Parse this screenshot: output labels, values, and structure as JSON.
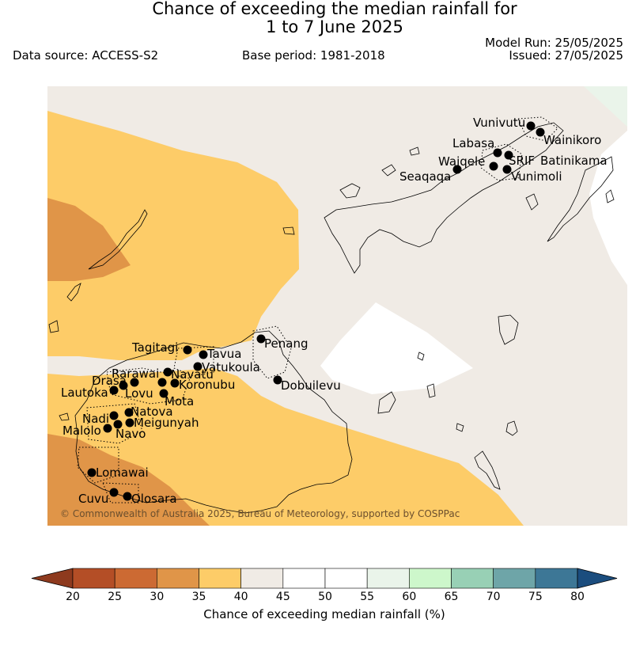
{
  "header": {
    "title_line1": "Chance of exceeding the median rainfall for",
    "title_line2": "1 to 7 June 2025",
    "data_source": "Data source: ACCESS-S2",
    "base_period": "Base period: 1981-2018",
    "model_run": "Model Run: 25/05/2025",
    "issued": "Issued: 27/05/2025"
  },
  "map": {
    "copyright": "© Commonwealth of Australia 2025, Bureau of Meteorology, supported by COSPPac",
    "stations": [
      "Vunivutu",
      "Wainikoro",
      "Labasa",
      "Waiqele",
      "SRIF",
      "Batinikama",
      "Seaqaqa",
      "Vunimoli",
      "Penang",
      "Dobuilevu",
      "Tagitagi",
      "Tavua",
      "Vatukoula",
      "Rarawai",
      "Navatu",
      "Drasa",
      "Koronubu",
      "Lautoka",
      "Lovu",
      "Mota",
      "Nadi",
      "Natova",
      "Meigunyah",
      "Malolo",
      "Navo",
      "Lomawai",
      "Cuvu",
      "Olosara"
    ]
  },
  "colorbar": {
    "label": "Chance of exceeding median rainfall (%)",
    "ticks": [
      "20",
      "25",
      "30",
      "35",
      "40",
      "45",
      "50",
      "55",
      "60",
      "65",
      "70",
      "75",
      "80"
    ],
    "colors": [
      "#8e3a1e",
      "#b44e26",
      "#cc6a33",
      "#e09548",
      "#fdcc68",
      "#f0ebe5",
      "#ffffff",
      "#ffffff",
      "#eaf4ea",
      "#cdf7cb",
      "#98d0b5",
      "#6ea5a8",
      "#3d7796",
      "#1b4d7e"
    ]
  }
}
